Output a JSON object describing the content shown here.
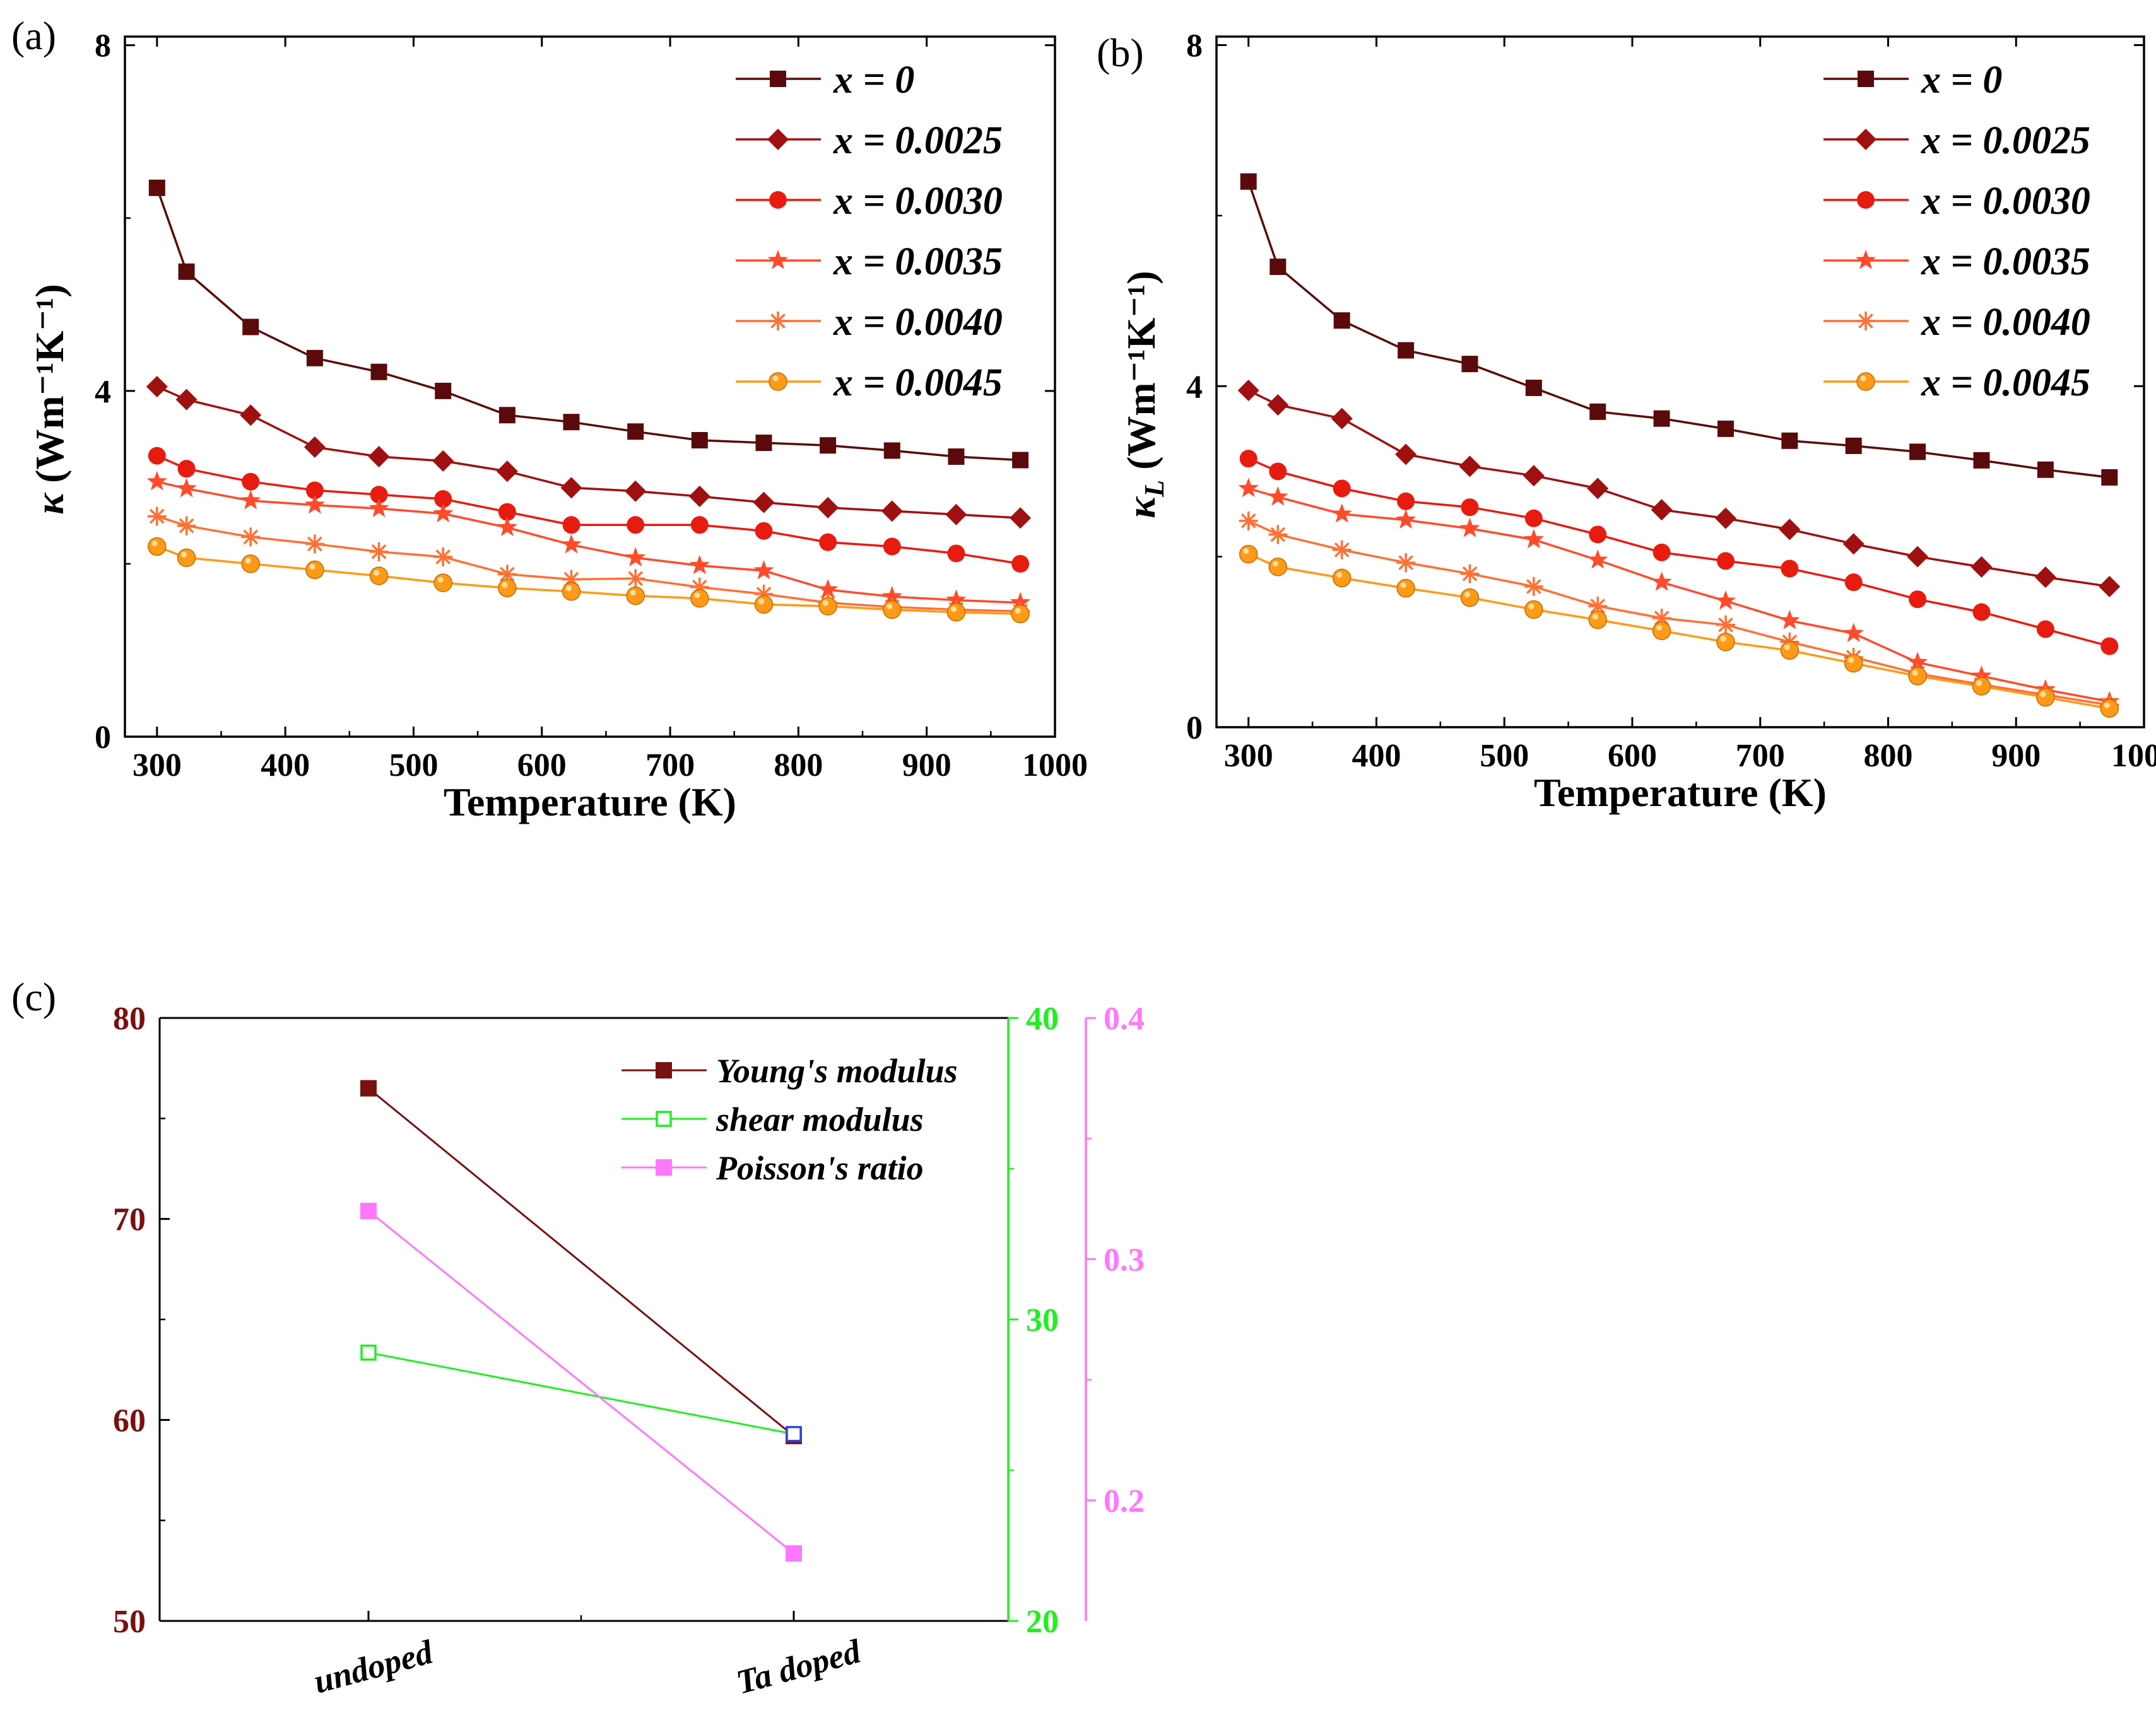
{
  "chart_data": [
    {
      "panel": "(a)",
      "type": "line",
      "xlabel": "Temperature (K)",
      "ylabel_prefix": "κ",
      "ylabel_sub": "",
      "ylabel_units": "(Wm⁻¹K⁻¹)",
      "xlim": [
        275,
        1000
      ],
      "ylim": [
        0,
        8.1
      ],
      "xticks": [
        300,
        400,
        500,
        600,
        700,
        800,
        900,
        1000
      ],
      "yticks": [
        0,
        4,
        8
      ],
      "grid": false,
      "legend": "top-right",
      "x": [
        300,
        323,
        373,
        423,
        473,
        523,
        573,
        623,
        673,
        723,
        773,
        823,
        873,
        923,
        973
      ],
      "series": [
        {
          "name": "x = 0",
          "color": "#5a0a0a",
          "marker": "square",
          "values": [
            6.35,
            5.38,
            4.74,
            4.38,
            4.22,
            4.0,
            3.72,
            3.64,
            3.53,
            3.43,
            3.4,
            3.37,
            3.31,
            3.24,
            3.2
          ]
        },
        {
          "name": "x = 0.0025",
          "color": "#a01010",
          "marker": "diamond",
          "values": [
            4.05,
            3.9,
            3.72,
            3.35,
            3.24,
            3.19,
            3.07,
            2.88,
            2.84,
            2.78,
            2.71,
            2.65,
            2.61,
            2.57,
            2.53
          ]
        },
        {
          "name": "x = 0.0030",
          "color": "#e81b10",
          "marker": "circle",
          "values": [
            3.25,
            3.1,
            2.95,
            2.85,
            2.8,
            2.75,
            2.6,
            2.45,
            2.45,
            2.45,
            2.38,
            2.25,
            2.2,
            2.12,
            2.0
          ]
        },
        {
          "name": "x = 0.0035",
          "color": "#ff4b2b",
          "marker": "star",
          "values": [
            2.95,
            2.87,
            2.73,
            2.68,
            2.64,
            2.58,
            2.42,
            2.22,
            2.07,
            1.98,
            1.92,
            1.7,
            1.62,
            1.58,
            1.55
          ]
        },
        {
          "name": "x = 0.0040",
          "color": "#ff7035",
          "marker": "asterisk",
          "values": [
            2.55,
            2.44,
            2.31,
            2.23,
            2.14,
            2.08,
            1.88,
            1.82,
            1.83,
            1.73,
            1.65,
            1.55,
            1.5,
            1.47,
            1.45
          ]
        },
        {
          "name": "x = 0.0045",
          "color": "#ff9a18",
          "marker": "ball",
          "values": [
            2.2,
            2.07,
            2.0,
            1.93,
            1.86,
            1.78,
            1.72,
            1.68,
            1.63,
            1.6,
            1.53,
            1.51,
            1.47,
            1.44,
            1.42
          ]
        }
      ]
    },
    {
      "panel": "(b)",
      "type": "line",
      "xlabel": "Temperature (K)",
      "ylabel_prefix": "κ",
      "ylabel_sub": "L",
      "ylabel_units": "(Wm⁻¹K⁻¹)",
      "xlim": [
        275,
        1000
      ],
      "ylim": [
        0,
        8.1
      ],
      "xticks": [
        300,
        400,
        500,
        600,
        700,
        800,
        900,
        1000
      ],
      "yticks": [
        0,
        4,
        8
      ],
      "grid": false,
      "legend": "top-right",
      "x": [
        300,
        323,
        373,
        423,
        473,
        523,
        573,
        623,
        673,
        723,
        773,
        823,
        873,
        923,
        973
      ],
      "series": [
        {
          "name": "x = 0",
          "color": "#5a0a0a",
          "marker": "square",
          "values": [
            6.4,
            5.4,
            4.77,
            4.42,
            4.26,
            3.98,
            3.7,
            3.62,
            3.5,
            3.36,
            3.3,
            3.23,
            3.13,
            3.02,
            2.93
          ]
        },
        {
          "name": "x = 0.0025",
          "color": "#a01010",
          "marker": "diamond",
          "values": [
            3.95,
            3.78,
            3.62,
            3.2,
            3.06,
            2.95,
            2.8,
            2.55,
            2.45,
            2.32,
            2.15,
            2.0,
            1.88,
            1.76,
            1.65
          ]
        },
        {
          "name": "x = 0.0030",
          "color": "#e81b10",
          "marker": "circle",
          "values": [
            3.15,
            3.0,
            2.8,
            2.65,
            2.58,
            2.45,
            2.26,
            2.05,
            1.95,
            1.86,
            1.7,
            1.5,
            1.35,
            1.15,
            0.95
          ]
        },
        {
          "name": "x = 0.0035",
          "color": "#ff4b2b",
          "marker": "star",
          "values": [
            2.8,
            2.7,
            2.5,
            2.43,
            2.33,
            2.2,
            1.96,
            1.7,
            1.48,
            1.25,
            1.1,
            0.76,
            0.6,
            0.44,
            0.3
          ]
        },
        {
          "name": "x = 0.0040",
          "color": "#ff7035",
          "marker": "asterisk",
          "values": [
            2.42,
            2.26,
            2.08,
            1.93,
            1.8,
            1.65,
            1.42,
            1.28,
            1.2,
            1.0,
            0.82,
            0.63,
            0.5,
            0.38,
            0.26
          ]
        },
        {
          "name": "x = 0.0045",
          "color": "#ff9a18",
          "marker": "ball",
          "values": [
            2.03,
            1.88,
            1.75,
            1.63,
            1.52,
            1.38,
            1.26,
            1.13,
            1.0,
            0.9,
            0.75,
            0.6,
            0.48,
            0.35,
            0.22
          ]
        }
      ]
    },
    {
      "panel": "(c)",
      "type": "line",
      "categories": [
        "undoped",
        "Ta doped"
      ],
      "legend": "top-right",
      "grid": false,
      "axes": [
        {
          "id": "y1",
          "side": "left",
          "color": "#7a1010",
          "ylim": [
            50,
            80
          ],
          "ticks": [
            50,
            60,
            70,
            80
          ],
          "tick_labels": [
            "50",
            "60",
            "70",
            "80"
          ]
        },
        {
          "id": "y2",
          "side": "right",
          "color": "#22ee22",
          "ylim": [
            20,
            40
          ],
          "ticks": [
            20,
            30,
            40
          ],
          "tick_labels": [
            "20",
            "30",
            "40"
          ]
        },
        {
          "id": "y3",
          "side": "right-offset",
          "color": "#ff77ff",
          "ylim": [
            0.15,
            0.4
          ],
          "ticks": [
            0.2,
            0.3,
            0.4
          ],
          "tick_labels": [
            "0.2",
            "0.3",
            "0.4"
          ]
        }
      ],
      "series": [
        {
          "name": "Young's modulus",
          "axis": "y1",
          "color": "#7a1010",
          "marker": "square",
          "values": [
            76.5,
            59.2
          ]
        },
        {
          "name": "shear modulus",
          "axis": "y2",
          "color": "#22ee22",
          "marker": "open-square",
          "marker_colors": [
            "#22ee22",
            "#3344dd"
          ],
          "values": [
            28.9,
            26.2
          ]
        },
        {
          "name": "Poisson's ratio",
          "axis": "y3",
          "color": "#ff77ff",
          "marker": "square",
          "values": [
            0.32,
            0.178
          ]
        }
      ]
    }
  ]
}
